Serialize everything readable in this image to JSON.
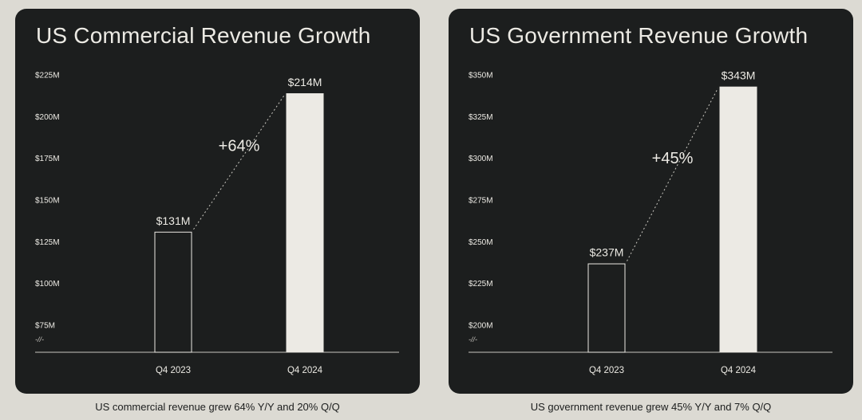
{
  "charts": [
    {
      "title": "US Commercial Revenue Growth",
      "caption": "US commercial revenue grew 64% Y/Y and 20% Q/Q"
    },
    {
      "title": "US Government Revenue Growth",
      "caption": "US government revenue grew 45% Y/Y and 7% Q/Q"
    }
  ],
  "chart_data": [
    {
      "type": "bar",
      "title": "US Commercial Revenue Growth",
      "categories": [
        "Q4 2023",
        "Q4 2024"
      ],
      "values": [
        131,
        214
      ],
      "value_labels": [
        "$131M",
        "$214M"
      ],
      "growth_label": "+64%",
      "yticks": [
        75,
        100,
        125,
        150,
        175,
        200,
        225
      ],
      "ytick_labels": [
        "$75M",
        "$100M",
        "$125M",
        "$150M",
        "$175M",
        "$200M",
        "$225M"
      ],
      "ylim": [
        75,
        225
      ],
      "axis_break_label": "-//-",
      "bar_styles": [
        "outline",
        "filled"
      ],
      "grid": false,
      "colors": {
        "background": "#1c1e1e",
        "bar": "#eceae4",
        "text": "#eceae4",
        "axis": "#c9c7c0"
      }
    },
    {
      "type": "bar",
      "title": "US Government Revenue Growth",
      "categories": [
        "Q4 2023",
        "Q4 2024"
      ],
      "values": [
        237,
        343
      ],
      "value_labels": [
        "$237M",
        "$343M"
      ],
      "growth_label": "+45%",
      "yticks": [
        200,
        225,
        250,
        275,
        300,
        325,
        350
      ],
      "ytick_labels": [
        "$200M",
        "$225M",
        "$250M",
        "$275M",
        "$300M",
        "$325M",
        "$350M"
      ],
      "ylim": [
        200,
        350
      ],
      "axis_break_label": "-//-",
      "bar_styles": [
        "outline",
        "filled"
      ],
      "grid": false,
      "colors": {
        "background": "#1c1e1e",
        "bar": "#eceae4",
        "text": "#eceae4",
        "axis": "#c9c7c0"
      }
    }
  ]
}
